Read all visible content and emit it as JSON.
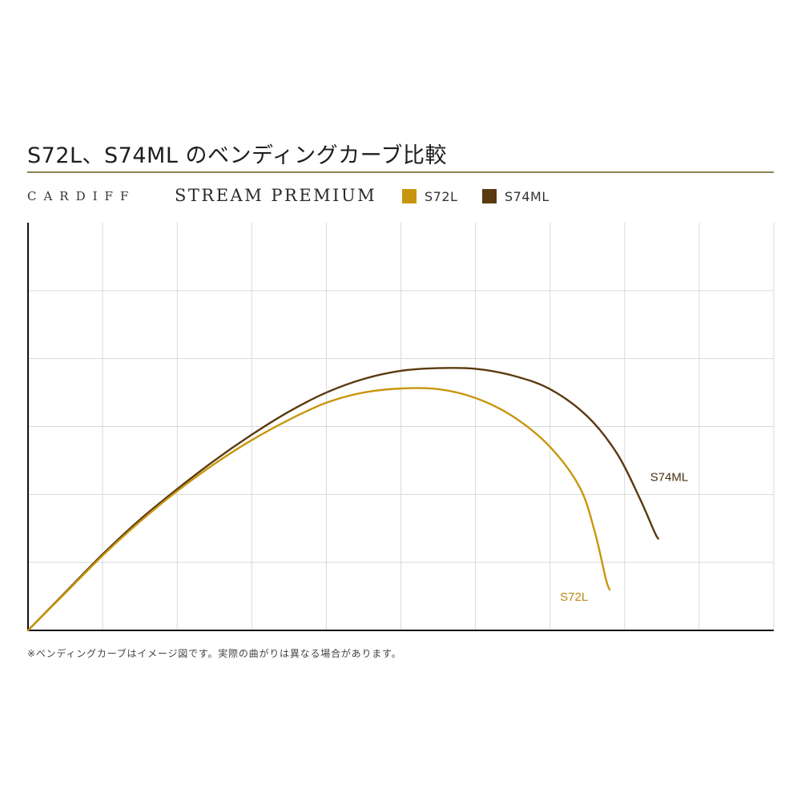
{
  "title": "S72L、S74ML のベンディングカーブ比較",
  "brand": "CARDIFF",
  "product_line": "STREAM PREMIUM",
  "note": "※ベンディングカーブはイメージ図です。実際の曲がりは異なる場合があります。",
  "colors": {
    "rule": "#8a8652",
    "grid": "#d9d9d9",
    "axis": "#111111"
  },
  "chart_data": {
    "type": "line",
    "grid": true,
    "xlim": [
      0,
      10
    ],
    "ylim": [
      0,
      6
    ],
    "legend_placement": "top",
    "series": [
      {
        "name": "S72L",
        "color": "#c8960e",
        "label_color": "#b88a10",
        "x": [
          0,
          0.5,
          1,
          1.5,
          2,
          2.5,
          3,
          3.5,
          4,
          4.5,
          5,
          5.5,
          6,
          6.5,
          7,
          7.4,
          7.6,
          7.75,
          7.8
        ],
        "y": [
          0,
          0.55,
          1.1,
          1.6,
          2.05,
          2.45,
          2.8,
          3.1,
          3.35,
          3.5,
          3.56,
          3.55,
          3.42,
          3.15,
          2.7,
          2.1,
          1.45,
          0.75,
          0.6
        ]
      },
      {
        "name": "S74ML",
        "color": "#5a3a10",
        "label_color": "#4a3010",
        "x": [
          0,
          0.5,
          1,
          1.5,
          2,
          2.5,
          3,
          3.5,
          4,
          4.5,
          5,
          5.5,
          6,
          6.5,
          7,
          7.5,
          7.9,
          8.2,
          8.4,
          8.45
        ],
        "y": [
          0,
          0.56,
          1.12,
          1.63,
          2.08,
          2.5,
          2.88,
          3.22,
          3.5,
          3.7,
          3.82,
          3.86,
          3.85,
          3.75,
          3.55,
          3.15,
          2.6,
          1.95,
          1.45,
          1.35
        ]
      }
    ]
  }
}
